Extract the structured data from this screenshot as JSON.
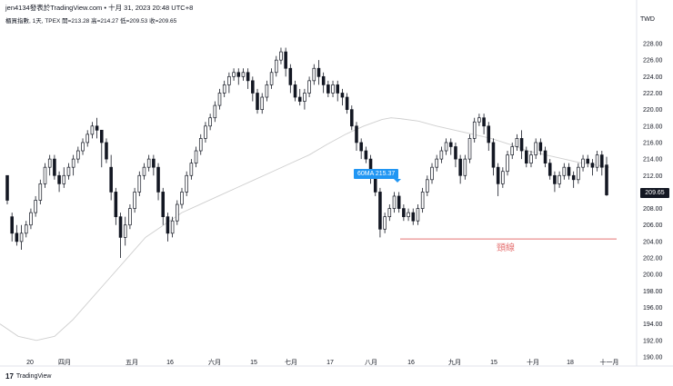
{
  "header": {
    "publisher_line": "jen4134發表於TradingView.com • 十月 31, 2023 20:48 UTC+8",
    "symbol_line": "櫃買指數, 1天, TPEX  開=213.28  高=214.27  低=209.53  收=209.65"
  },
  "currency": "TWD",
  "brand": {
    "logo": "17",
    "name": "TradingView"
  },
  "annotations": {
    "ma_label": "60MA 215.37",
    "neckline_label": "頸線",
    "last_price": "209.65"
  },
  "colors": {
    "candle": "#131722",
    "ma": "#cfcfcf",
    "neckline": "#e57373",
    "ma_label_bg": "#2196f3"
  },
  "chart_data": {
    "type": "candlestick",
    "y_ticks": [
      "228.00",
      "226.00",
      "224.00",
      "222.00",
      "220.00",
      "218.00",
      "216.00",
      "214.00",
      "212.00",
      "210.00",
      "208.00",
      "206.00",
      "204.00",
      "202.00",
      "200.00",
      "198.00",
      "196.00",
      "194.00",
      "192.00",
      "190.00"
    ],
    "x_ticks": [
      "20",
      "四月",
      "五月",
      "16",
      "六月",
      "15",
      "七月",
      "17",
      "八月",
      "16",
      "九月",
      "15",
      "十月",
      "18",
      "十一月"
    ],
    "ylim": [
      190,
      229
    ],
    "candles": [
      [
        212,
        209,
        212,
        208.5
      ],
      [
        207,
        205,
        207.5,
        204
      ],
      [
        205,
        204,
        206,
        203.5
      ],
      [
        204,
        205,
        206,
        203
      ],
      [
        205,
        206,
        206.5,
        204.5
      ],
      [
        206,
        207.5,
        208,
        205.5
      ],
      [
        207.5,
        209,
        209.5,
        207
      ],
      [
        209,
        211,
        211.5,
        208.5
      ],
      [
        211,
        213,
        213.5,
        210.5
      ],
      [
        213,
        214,
        214.5,
        212
      ],
      [
        214,
        212,
        214.5,
        211.5
      ],
      [
        212,
        211,
        212.5,
        210
      ],
      [
        211,
        212,
        213,
        210.5
      ],
      [
        212,
        213,
        213.5,
        211.5
      ],
      [
        213,
        214,
        214.5,
        212
      ],
      [
        214,
        215,
        215.5,
        213.5
      ],
      [
        215,
        216,
        216.5,
        214.5
      ],
      [
        216,
        217,
        217.5,
        215.5
      ],
      [
        217,
        218,
        218.5,
        216.5
      ],
      [
        218,
        217.5,
        219,
        216.5
      ],
      [
        217.5,
        216,
        217.5,
        213
      ],
      [
        216,
        214,
        216.5,
        213.5
      ],
      [
        213,
        210,
        214.5,
        209
      ],
      [
        210,
        207,
        210.5,
        206
      ],
      [
        207,
        204.5,
        207.5,
        202
      ],
      [
        204.5,
        206,
        207,
        203.5
      ],
      [
        206,
        208,
        208.5,
        205.5
      ],
      [
        208,
        210,
        210.5,
        207.5
      ],
      [
        210,
        212,
        212.5,
        209.5
      ],
      [
        212,
        213,
        213.5,
        211.5
      ],
      [
        213,
        214,
        214.5,
        212.5
      ],
      [
        214,
        213,
        214.5,
        212
      ],
      [
        213,
        210,
        213.5,
        209
      ],
      [
        210,
        207,
        210.5,
        206
      ],
      [
        207,
        205,
        207.5,
        204
      ],
      [
        205,
        206.5,
        207,
        204.5
      ],
      [
        206.5,
        208.5,
        209,
        206
      ],
      [
        208.5,
        210,
        210.5,
        208
      ],
      [
        210,
        212,
        212.5,
        209.5
      ],
      [
        212,
        213.5,
        214,
        211.5
      ],
      [
        213.5,
        215,
        215.5,
        213
      ],
      [
        215,
        216.5,
        217,
        214.5
      ],
      [
        216.5,
        218,
        218.5,
        216
      ],
      [
        218,
        219,
        219.5,
        217.5
      ],
      [
        219,
        220.5,
        221,
        218.5
      ],
      [
        220.5,
        222,
        222.5,
        220
      ],
      [
        222,
        223,
        223.5,
        221.5
      ],
      [
        223,
        224,
        224.5,
        222
      ],
      [
        224,
        224.5,
        225,
        223.5
      ],
      [
        224.5,
        224,
        225,
        223
      ],
      [
        224,
        224.5,
        225,
        223.5
      ],
      [
        224.5,
        223.5,
        225,
        222.5
      ],
      [
        223.5,
        222,
        224,
        221
      ],
      [
        222,
        220,
        222.5,
        219.5
      ],
      [
        220,
        221.5,
        222,
        219.5
      ],
      [
        221.5,
        223,
        223.5,
        221
      ],
      [
        223,
        224.5,
        225,
        222.5
      ],
      [
        224.5,
        226,
        226.5,
        224
      ],
      [
        226,
        227,
        227.5,
        225.5
      ],
      [
        227,
        225,
        227.5,
        224
      ],
      [
        225,
        223,
        225.5,
        222
      ],
      [
        223,
        221.5,
        223.5,
        221
      ],
      [
        221.5,
        221,
        222.5,
        220.5
      ],
      [
        221,
        222,
        222.5,
        220
      ],
      [
        222,
        223.5,
        224,
        221.5
      ],
      [
        223.5,
        225,
        225.5,
        223
      ],
      [
        225,
        224,
        226,
        223
      ],
      [
        224,
        223,
        224.5,
        222
      ],
      [
        223,
        222,
        223.5,
        221.5
      ],
      [
        222,
        223,
        223.5,
        221.5
      ],
      [
        223,
        222,
        223.5,
        221
      ],
      [
        222,
        221.5,
        222.5,
        220.5
      ],
      [
        221.5,
        220,
        222,
        219.5
      ],
      [
        220,
        218,
        220.5,
        217.5
      ],
      [
        218,
        216,
        218.5,
        215
      ],
      [
        216,
        215,
        216.5,
        214
      ],
      [
        215,
        214,
        215.5,
        213.5
      ],
      [
        214,
        212,
        214.5,
        211
      ],
      [
        212,
        210,
        212.5,
        209.5
      ],
      [
        210,
        205.5,
        210.5,
        204.5
      ],
      [
        205.5,
        207,
        207.5,
        205
      ],
      [
        207,
        208,
        208.5,
        206.5
      ],
      [
        208,
        209.5,
        210,
        207.5
      ],
      [
        209.5,
        208,
        210,
        207.5
      ],
      [
        208,
        207,
        208.5,
        206.5
      ],
      [
        207,
        207.5,
        208,
        206.5
      ],
      [
        207.5,
        206.5,
        208,
        206
      ],
      [
        206.5,
        208,
        208.5,
        206
      ],
      [
        208,
        210,
        210.5,
        207.5
      ],
      [
        210,
        211.5,
        212,
        209.5
      ],
      [
        211.5,
        213,
        213.5,
        211
      ],
      [
        213,
        214,
        214.5,
        212.5
      ],
      [
        214,
        215,
        215.5,
        213.5
      ],
      [
        215,
        216,
        216.5,
        214.5
      ],
      [
        216,
        215.5,
        216.5,
        214.5
      ],
      [
        215.5,
        214,
        216,
        213
      ],
      [
        214,
        212,
        214.5,
        211
      ],
      [
        212,
        214,
        214.5,
        211.5
      ],
      [
        214,
        216.5,
        217,
        213.5
      ],
      [
        216.5,
        218.5,
        219,
        216
      ],
      [
        218.5,
        219,
        219.5,
        218
      ],
      [
        219,
        218,
        219.5,
        217
      ],
      [
        218,
        216,
        218.5,
        215
      ],
      [
        216,
        213,
        216.5,
        212
      ],
      [
        213,
        211,
        213.5,
        209.5
      ],
      [
        211,
        212.5,
        213,
        210.5
      ],
      [
        212.5,
        214.5,
        215,
        212
      ],
      [
        214.5,
        215.5,
        216,
        214
      ],
      [
        215.5,
        216.5,
        217,
        215
      ],
      [
        216.5,
        215,
        217.5,
        214
      ],
      [
        215,
        213.5,
        215.5,
        213
      ],
      [
        213.5,
        214.5,
        215,
        213
      ],
      [
        214.5,
        216,
        216.5,
        214
      ],
      [
        216,
        215,
        216.5,
        214.5
      ],
      [
        215,
        213.5,
        215.5,
        213
      ],
      [
        213.5,
        212,
        214,
        211.5
      ],
      [
        212,
        211,
        212.5,
        210
      ],
      [
        211,
        212,
        212.5,
        210.5
      ],
      [
        212,
        213,
        213.5,
        211.5
      ],
      [
        213,
        212,
        213.5,
        211.5
      ],
      [
        212,
        211.5,
        212.5,
        210.5
      ],
      [
        211.5,
        213,
        213.5,
        211
      ],
      [
        213,
        214,
        214.5,
        212.5
      ],
      [
        214,
        213.5,
        214.5,
        213
      ],
      [
        213.5,
        213,
        214,
        212
      ],
      [
        213,
        214.5,
        215,
        212.5
      ],
      [
        214.5,
        213,
        215,
        212
      ],
      [
        213.28,
        209.65,
        214.27,
        209.53
      ]
    ],
    "ma60": [
      [
        0,
        194
      ],
      [
        20,
        192.5
      ],
      [
        40,
        192
      ],
      [
        60,
        192.5
      ],
      [
        80,
        194.5
      ],
      [
        100,
        197
      ],
      [
        120,
        199.5
      ],
      [
        140,
        202
      ],
      [
        160,
        204.5
      ],
      [
        180,
        206
      ],
      [
        200,
        207.5
      ],
      [
        220,
        208.5
      ],
      [
        240,
        209.5
      ],
      [
        260,
        210.5
      ],
      [
        280,
        211.5
      ],
      [
        300,
        212.5
      ],
      [
        320,
        213.5
      ],
      [
        340,
        214.5
      ],
      [
        360,
        215.8
      ],
      [
        380,
        217
      ],
      [
        400,
        218
      ],
      [
        420,
        218.8
      ],
      [
        430,
        219
      ],
      [
        440,
        218.9
      ],
      [
        460,
        218.6
      ],
      [
        480,
        218
      ],
      [
        500,
        217.5
      ],
      [
        520,
        217
      ],
      [
        540,
        216.5
      ],
      [
        560,
        215.8
      ],
      [
        580,
        215
      ],
      [
        600,
        214.5
      ],
      [
        620,
        214
      ],
      [
        640,
        213.5
      ],
      [
        660,
        213.2
      ],
      [
        670,
        213
      ]
    ],
    "neckline": 204.3,
    "ma_value": 215.37,
    "last_close": 209.65
  }
}
